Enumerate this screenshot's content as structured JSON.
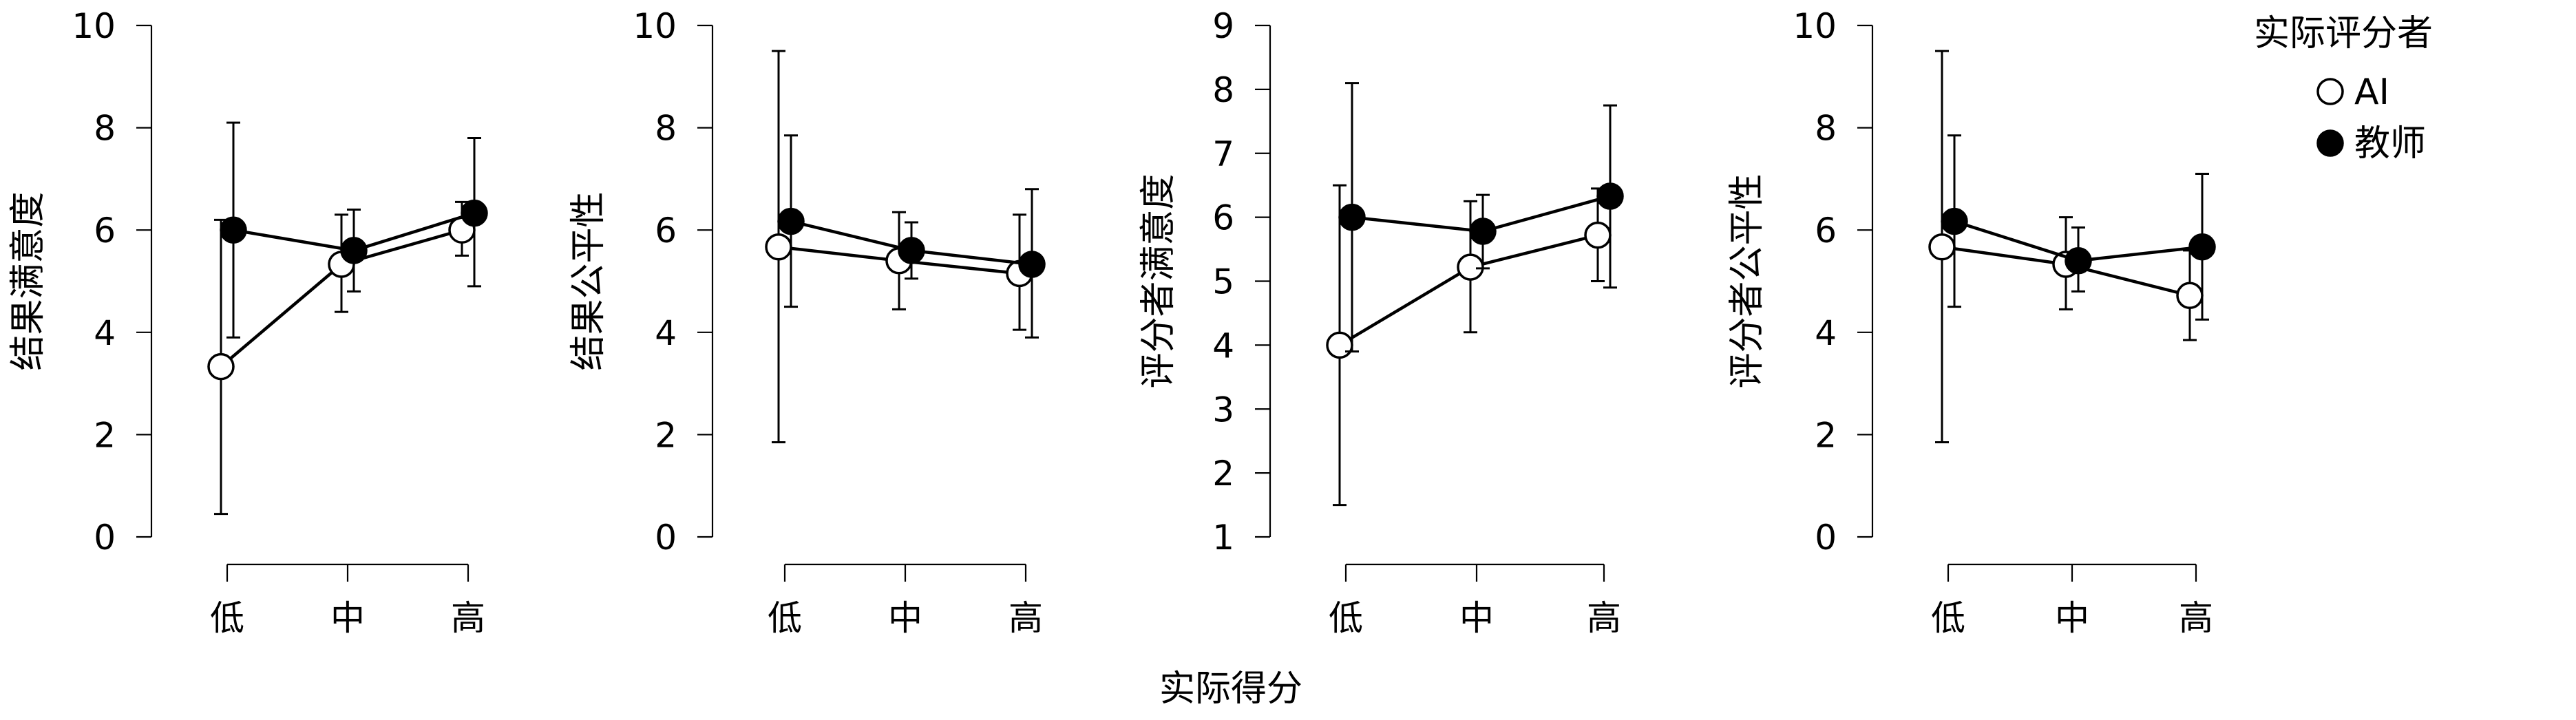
{
  "chart_data": [
    {
      "type": "line",
      "ylabel": "结果满意度",
      "ylim": [
        0,
        10
      ],
      "yticks": [
        0,
        2,
        4,
        6,
        8,
        10
      ],
      "categories": [
        "低",
        "中",
        "高"
      ],
      "series": [
        {
          "name": "AI",
          "marker": "open-circle",
          "values": [
            3.33,
            5.33,
            6.0
          ],
          "err_low": [
            0.45,
            4.4,
            5.5
          ],
          "err_high": [
            6.2,
            6.3,
            6.55
          ]
        },
        {
          "name": "教师",
          "marker": "filled-circle",
          "values": [
            6.0,
            5.6,
            6.33
          ],
          "err_low": [
            3.9,
            4.8,
            4.9
          ],
          "err_high": [
            8.1,
            6.4,
            7.8
          ]
        }
      ]
    },
    {
      "type": "line",
      "ylabel": "结果公平性",
      "ylim": [
        0,
        10
      ],
      "yticks": [
        0,
        2,
        4,
        6,
        8,
        10
      ],
      "categories": [
        "低",
        "中",
        "高"
      ],
      "series": [
        {
          "name": "AI",
          "marker": "open-circle",
          "values": [
            5.67,
            5.4,
            5.15
          ],
          "err_low": [
            1.85,
            4.45,
            4.05
          ],
          "err_high": [
            9.5,
            6.35,
            6.3
          ]
        },
        {
          "name": "教师",
          "marker": "filled-circle",
          "values": [
            6.17,
            5.6,
            5.33
          ],
          "err_low": [
            4.5,
            5.05,
            3.9
          ],
          "err_high": [
            7.85,
            6.15,
            6.8
          ]
        }
      ]
    },
    {
      "type": "line",
      "ylabel": "评分者满意度",
      "ylim": [
        1,
        9
      ],
      "yticks": [
        1,
        2,
        3,
        4,
        5,
        6,
        7,
        8,
        9
      ],
      "categories": [
        "低",
        "中",
        "高"
      ],
      "series": [
        {
          "name": "AI",
          "marker": "open-circle",
          "values": [
            4.0,
            5.22,
            5.72
          ],
          "err_low": [
            1.5,
            4.2,
            5.0
          ],
          "err_high": [
            6.5,
            6.25,
            6.45
          ]
        },
        {
          "name": "教师",
          "marker": "filled-circle",
          "values": [
            6.0,
            5.78,
            6.33
          ],
          "err_low": [
            3.9,
            5.2,
            4.9
          ],
          "err_high": [
            8.1,
            6.35,
            7.75
          ]
        }
      ]
    },
    {
      "type": "line",
      "ylabel": "评分者公平性",
      "ylim": [
        0,
        10
      ],
      "yticks": [
        0,
        2,
        4,
        6,
        8,
        10
      ],
      "categories": [
        "低",
        "中",
        "高"
      ],
      "series": [
        {
          "name": "AI",
          "marker": "open-circle",
          "values": [
            5.67,
            5.33,
            4.72
          ],
          "err_low": [
            1.85,
            4.45,
            3.85
          ],
          "err_high": [
            9.5,
            6.25,
            5.6
          ]
        },
        {
          "name": "教师",
          "marker": "filled-circle",
          "values": [
            6.17,
            5.4,
            5.67
          ],
          "err_low": [
            4.5,
            4.8,
            4.25
          ],
          "err_high": [
            7.85,
            6.05,
            7.1
          ]
        }
      ]
    }
  ],
  "shared_xlabel": "实际得分",
  "legend": {
    "title": "实际评分者",
    "items": [
      "AI",
      "教师"
    ],
    "placement": "top-right"
  }
}
